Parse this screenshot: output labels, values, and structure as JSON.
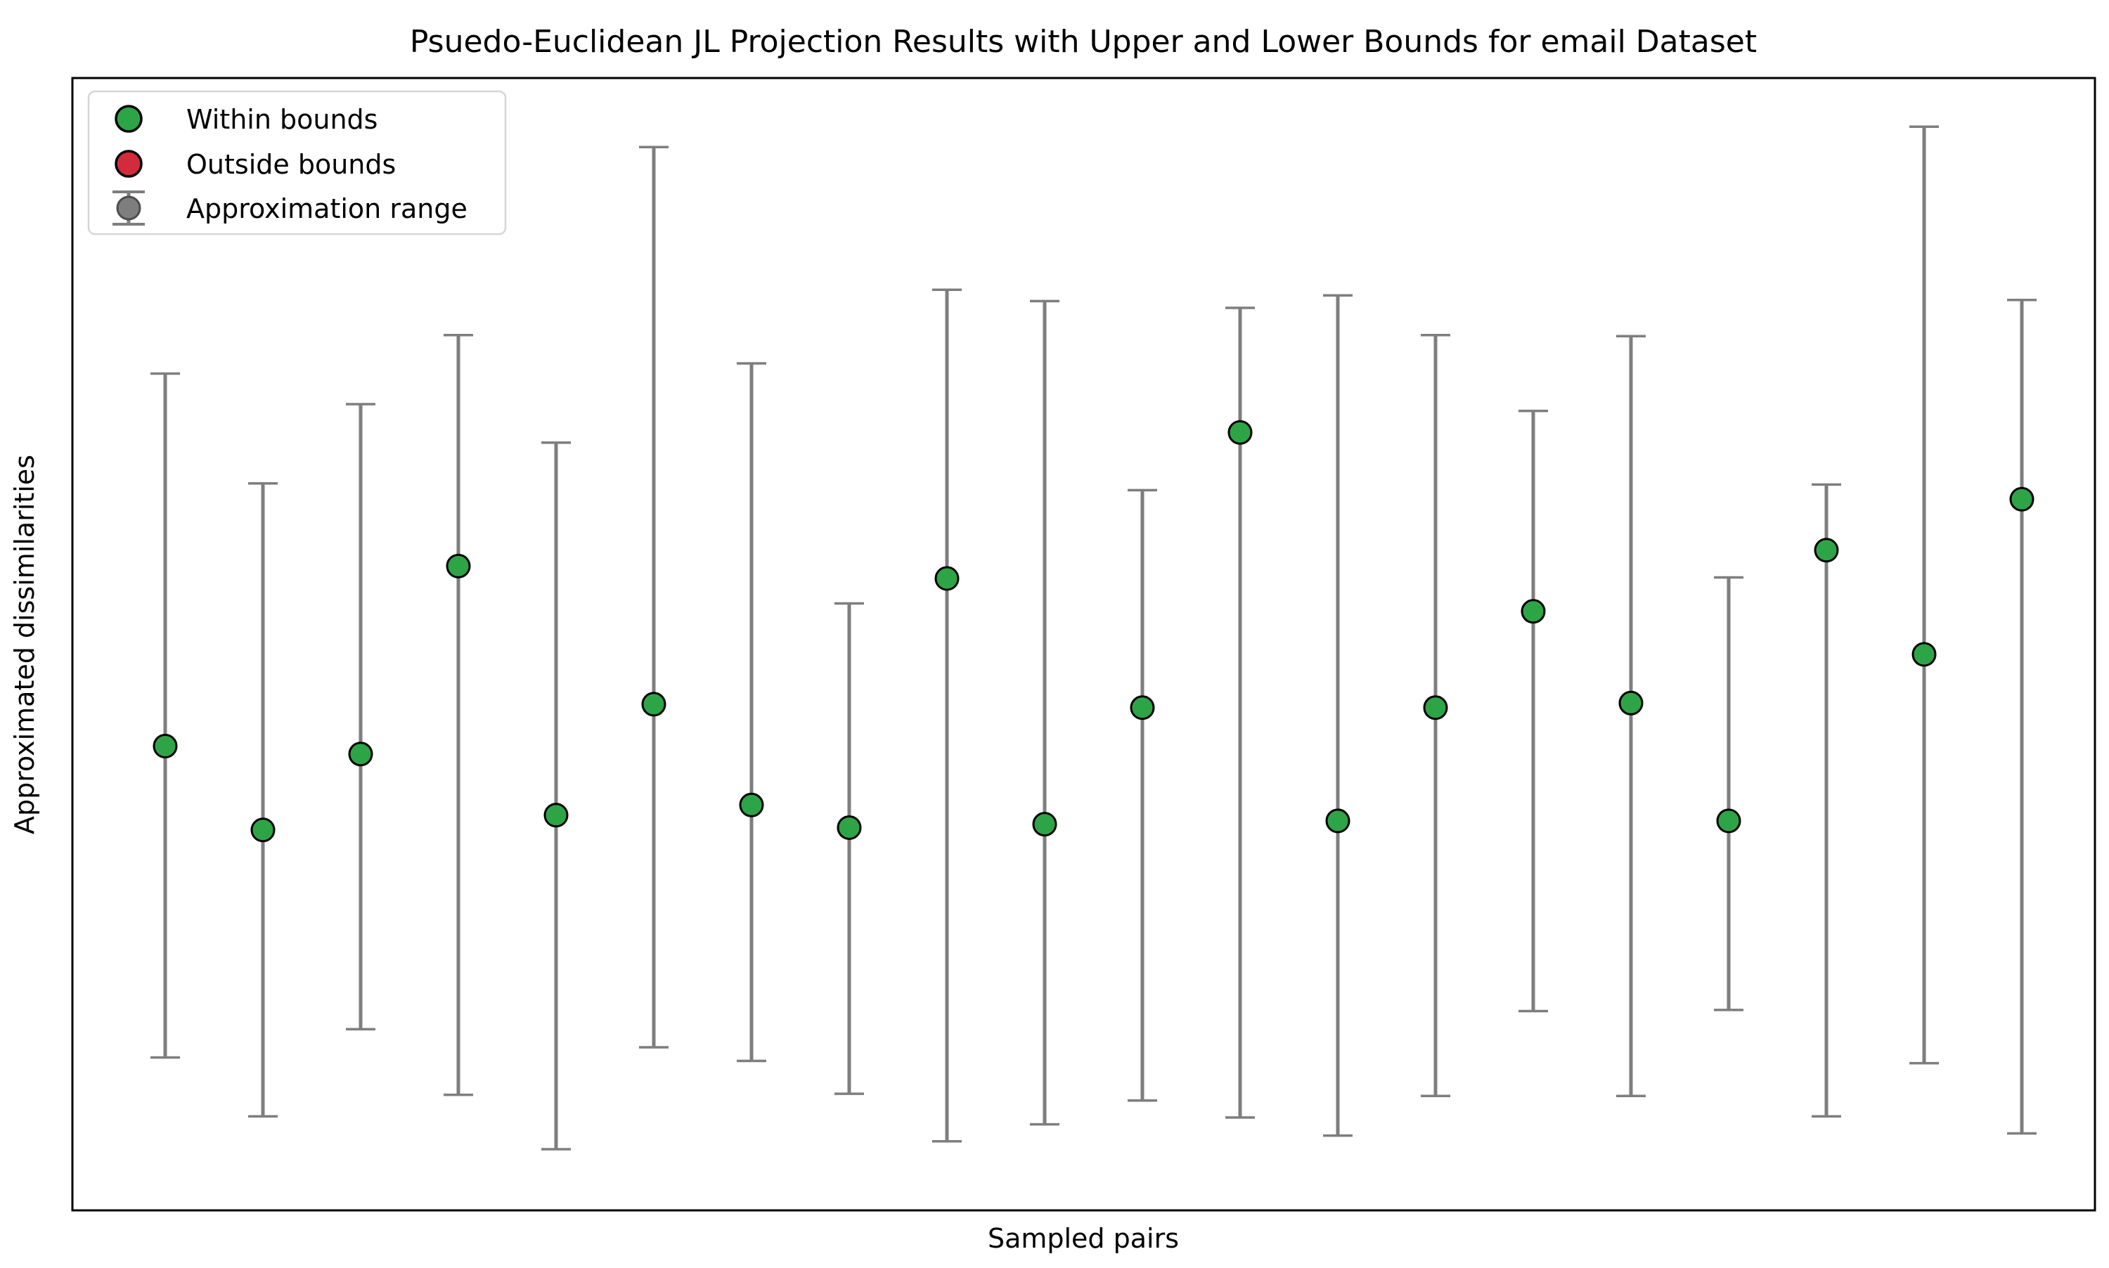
{
  "colors": {
    "within": "#2DA546",
    "outside": "#D22B3C",
    "range": "#7E7E7E",
    "range_marker_edge": "#4D4D4D",
    "marker_edge": "#000000",
    "axes_border": "#000000",
    "legend_border": "#D5D5D5",
    "background": "#FFFFFF"
  },
  "chart_data": {
    "type": "scatter",
    "subtype": "errorbar",
    "title": "Psuedo-Euclidean JL Projection Results with Upper and Lower Bounds for email Dataset",
    "xlabel": "Sampled pairs",
    "ylabel": "Approximated dissimilarities",
    "legend_position": "upper left",
    "grid": false,
    "x_tick_labels_visible": false,
    "y_tick_labels_visible": false,
    "xlim": [
      0,
      21
    ],
    "ylim": [
      0,
      1
    ],
    "note": "Axes show no numeric tick labels; values below are normalized to the visible y-axis span (0 = bottom spine, 1 = top spine). Each sampled pair has an approximated dissimilarity dot and a gray vertical approximation range (lower/upper bound caps). All 20 dots are within bounds (green); no red outside-bounds dots appear.",
    "legend": [
      {
        "label": "Within bounds",
        "marker": "circle",
        "color_key": "within"
      },
      {
        "label": "Outside bounds",
        "marker": "circle",
        "color_key": "outside"
      },
      {
        "label": "Approximation range",
        "marker": "errorbar",
        "color_key": "range"
      }
    ],
    "points": [
      {
        "pair": 1,
        "value": 0.41,
        "lower": 0.135,
        "upper": 0.739,
        "status": "within"
      },
      {
        "pair": 2,
        "value": 0.336,
        "lower": 0.083,
        "upper": 0.642,
        "status": "within"
      },
      {
        "pair": 3,
        "value": 0.403,
        "lower": 0.16,
        "upper": 0.712,
        "status": "within"
      },
      {
        "pair": 4,
        "value": 0.569,
        "lower": 0.102,
        "upper": 0.773,
        "status": "within"
      },
      {
        "pair": 5,
        "value": 0.349,
        "lower": 0.054,
        "upper": 0.678,
        "status": "within"
      },
      {
        "pair": 6,
        "value": 0.447,
        "lower": 0.144,
        "upper": 0.939,
        "status": "within"
      },
      {
        "pair": 7,
        "value": 0.358,
        "lower": 0.132,
        "upper": 0.748,
        "status": "within"
      },
      {
        "pair": 8,
        "value": 0.338,
        "lower": 0.103,
        "upper": 0.536,
        "status": "within"
      },
      {
        "pair": 9,
        "value": 0.558,
        "lower": 0.061,
        "upper": 0.813,
        "status": "within"
      },
      {
        "pair": 10,
        "value": 0.341,
        "lower": 0.076,
        "upper": 0.803,
        "status": "within"
      },
      {
        "pair": 11,
        "value": 0.444,
        "lower": 0.097,
        "upper": 0.636,
        "status": "within"
      },
      {
        "pair": 12,
        "value": 0.687,
        "lower": 0.082,
        "upper": 0.797,
        "status": "within"
      },
      {
        "pair": 13,
        "value": 0.344,
        "lower": 0.066,
        "upper": 0.808,
        "status": "within"
      },
      {
        "pair": 14,
        "value": 0.444,
        "lower": 0.101,
        "upper": 0.773,
        "status": "within"
      },
      {
        "pair": 15,
        "value": 0.529,
        "lower": 0.176,
        "upper": 0.706,
        "status": "within"
      },
      {
        "pair": 16,
        "value": 0.448,
        "lower": 0.101,
        "upper": 0.772,
        "status": "within"
      },
      {
        "pair": 17,
        "value": 0.344,
        "lower": 0.177,
        "upper": 0.559,
        "status": "within"
      },
      {
        "pair": 18,
        "value": 0.583,
        "lower": 0.083,
        "upper": 0.641,
        "status": "within"
      },
      {
        "pair": 19,
        "value": 0.491,
        "lower": 0.13,
        "upper": 0.957,
        "status": "within"
      },
      {
        "pair": 20,
        "value": 0.628,
        "lower": 0.068,
        "upper": 0.804,
        "status": "within"
      }
    ]
  }
}
